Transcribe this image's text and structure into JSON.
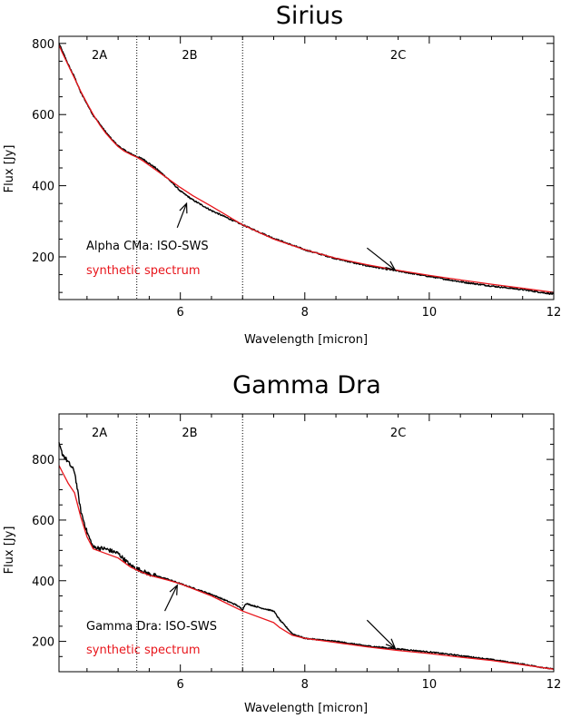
{
  "colors": {
    "observed": "#000000",
    "synthetic": "#e8151b",
    "frame": "#000000"
  },
  "chart_data": [
    {
      "type": "line",
      "title": "Sirius",
      "xlabel": "Wavelength [micron]",
      "ylabel": "Flux [Jy]",
      "xlim": [
        4.05,
        12.0
      ],
      "ylim": [
        80,
        820
      ],
      "xticks": [
        6,
        8,
        10,
        12
      ],
      "xtick_labels": [
        "6",
        "8",
        "10",
        "12"
      ],
      "yticks": [
        200,
        400,
        600,
        800
      ],
      "ytick_labels": [
        "200",
        "400",
        "600",
        "800"
      ],
      "band_boundaries": [
        5.3,
        7.0
      ],
      "band_labels": [
        {
          "label": "2A",
          "x": 4.7
        },
        {
          "label": "2B",
          "x": 6.15
        },
        {
          "label": "2C",
          "x": 9.5
        }
      ],
      "legend": {
        "observed": "Alpha CMa: ISO-SWS",
        "synthetic": "synthetic spectrum"
      },
      "arrows": [
        {
          "from": [
            5.95,
            282
          ],
          "to": [
            6.1,
            350
          ]
        },
        {
          "from": [
            9.0,
            225
          ],
          "to": [
            9.45,
            163
          ]
        }
      ],
      "series": [
        {
          "name": "Alpha CMa: ISO-SWS",
          "color": "#000000",
          "x": [
            4.05,
            4.1,
            4.2,
            4.3,
            4.4,
            4.5,
            4.6,
            4.7,
            4.8,
            4.9,
            5.0,
            5.1,
            5.2,
            5.3,
            5.4,
            5.6,
            5.8,
            6.0,
            6.2,
            6.5,
            7.0,
            7.5,
            8.0,
            8.5,
            9.0,
            9.5,
            10.0,
            10.5,
            11.0,
            11.5,
            12.0
          ],
          "values": [
            800,
            780,
            740,
            705,
            662,
            630,
            598,
            575,
            551,
            530,
            512,
            500,
            490,
            482,
            475,
            450,
            420,
            385,
            360,
            330,
            290,
            252,
            220,
            195,
            175,
            160,
            145,
            130,
            118,
            108,
            95
          ]
        },
        {
          "name": "synthetic spectrum",
          "color": "#e8151b",
          "x": [
            4.05,
            4.1,
            4.2,
            4.3,
            4.4,
            4.5,
            4.6,
            4.7,
            4.8,
            4.9,
            5.0,
            5.1,
            5.2,
            5.3,
            5.4,
            5.6,
            5.8,
            6.0,
            6.2,
            6.5,
            7.0,
            7.5,
            8.0,
            8.5,
            9.0,
            9.5,
            10.0,
            10.5,
            11.0,
            11.5,
            12.0
          ],
          "values": [
            795,
            775,
            738,
            702,
            665,
            632,
            600,
            572,
            548,
            528,
            510,
            497,
            488,
            480,
            470,
            445,
            420,
            395,
            372,
            342,
            290,
            250,
            220,
            196,
            178,
            162,
            148,
            135,
            123,
            112,
            100
          ]
        }
      ]
    },
    {
      "type": "line",
      "title": "Gamma Dra",
      "xlabel": "Wavelength [micron]",
      "ylabel": "Flux [Jy]",
      "xlim": [
        4.05,
        12.0
      ],
      "ylim": [
        100,
        950
      ],
      "xticks": [
        6,
        8,
        10,
        12
      ],
      "xtick_labels": [
        "6",
        "8",
        "10",
        "12"
      ],
      "yticks": [
        200,
        400,
        600,
        800
      ],
      "ytick_labels": [
        "200",
        "400",
        "600",
        "800"
      ],
      "band_boundaries": [
        5.3,
        7.0
      ],
      "band_labels": [
        {
          "label": "2A",
          "x": 4.7
        },
        {
          "label": "2B",
          "x": 6.15
        },
        {
          "label": "2C",
          "x": 9.5
        }
      ],
      "legend": {
        "observed": "Gamma Dra: ISO-SWS",
        "synthetic": "synthetic spectrum"
      },
      "arrows": [
        {
          "from": [
            5.75,
            300
          ],
          "to": [
            5.95,
            385
          ]
        },
        {
          "from": [
            9.0,
            270
          ],
          "to": [
            9.45,
            178
          ]
        }
      ],
      "series": [
        {
          "name": "Gamma Dra: ISO-SWS",
          "color": "#000000",
          "x": [
            4.05,
            4.1,
            4.2,
            4.3,
            4.4,
            4.5,
            4.6,
            4.8,
            5.0,
            5.2,
            5.3,
            5.5,
            5.8,
            6.0,
            6.5,
            6.9,
            7.0,
            7.05,
            7.3,
            7.5,
            7.6,
            7.8,
            8.0,
            8.5,
            9.0,
            9.5,
            10.0,
            10.5,
            11.0,
            11.5,
            12.0
          ],
          "values": [
            850,
            820,
            790,
            760,
            630,
            560,
            510,
            505,
            490,
            450,
            440,
            422,
            405,
            390,
            355,
            320,
            305,
            325,
            310,
            300,
            270,
            225,
            210,
            200,
            185,
            175,
            165,
            153,
            140,
            125,
            108
          ]
        },
        {
          "name": "synthetic spectrum",
          "color": "#e8151b",
          "x": [
            4.05,
            4.1,
            4.2,
            4.3,
            4.4,
            4.5,
            4.6,
            4.8,
            5.0,
            5.2,
            5.3,
            5.5,
            5.8,
            6.0,
            6.5,
            7.0,
            7.5,
            7.6,
            7.8,
            8.0,
            8.5,
            9.0,
            9.5,
            10.0,
            10.5,
            11.0,
            11.5,
            12.0
          ],
          "values": [
            780,
            760,
            720,
            690,
            610,
            545,
            505,
            490,
            475,
            445,
            435,
            418,
            402,
            390,
            350,
            300,
            262,
            245,
            220,
            210,
            196,
            182,
            170,
            160,
            148,
            137,
            123,
            108
          ]
        }
      ]
    }
  ]
}
